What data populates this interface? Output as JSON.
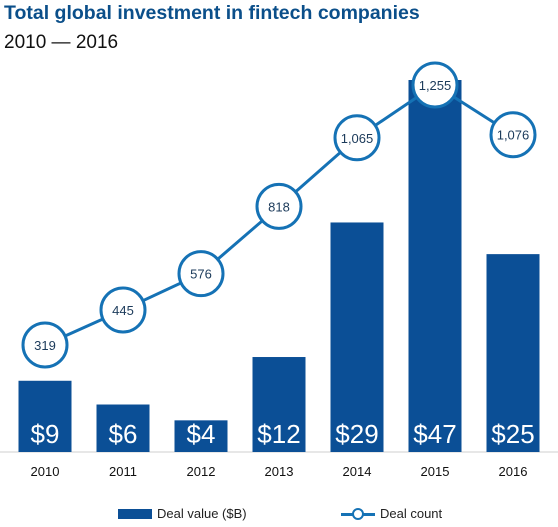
{
  "title": "Total global investment in fintech companies",
  "subtitle": "2010 — 2016",
  "colors": {
    "bar": "#0b4f96",
    "line": "#1572b5",
    "title": "#0b4f8a",
    "axis": "#cfcfcf"
  },
  "chart_data": {
    "type": "bar",
    "categories": [
      "2010",
      "2011",
      "2012",
      "2013",
      "2014",
      "2015",
      "2016"
    ],
    "series": [
      {
        "name": "Deal value ($B)",
        "type": "bar",
        "values": [
          9,
          6,
          4,
          12,
          29,
          47,
          25
        ],
        "labels": [
          "$9",
          "$6",
          "$4",
          "$12",
          "$29",
          "$47",
          "$25"
        ]
      },
      {
        "name": "Deal count",
        "type": "line",
        "values": [
          319,
          445,
          576,
          818,
          1065,
          1255,
          1076
        ],
        "labels": [
          "319",
          "445",
          "576",
          "818",
          "1,065",
          "1,255",
          "1,076"
        ]
      }
    ],
    "title": "Total global investment in fintech companies",
    "subtitle": "2010 — 2016",
    "legend": "bottom",
    "grid": false
  },
  "legend": {
    "bar_label": "Deal value ($B)",
    "line_label": "Deal count"
  }
}
